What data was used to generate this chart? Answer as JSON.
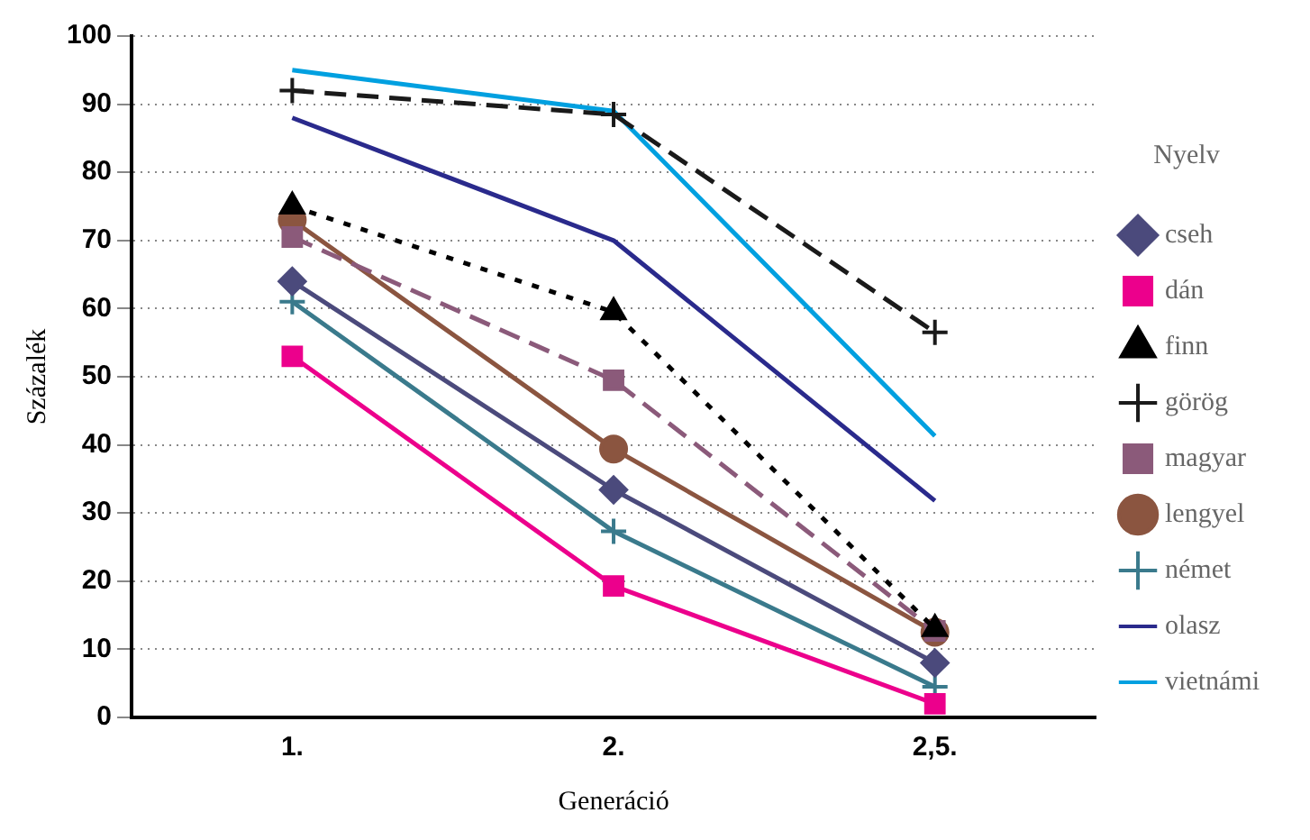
{
  "chart_data": {
    "type": "line",
    "xlabel": "Generáció",
    "ylabel": "Százalék",
    "legend_title": "Nyelv",
    "categories": [
      "1.",
      "2.",
      "2,5."
    ],
    "ylim": [
      0,
      100
    ],
    "yticks": [
      0,
      10,
      20,
      30,
      40,
      50,
      60,
      70,
      80,
      90,
      100
    ],
    "grid": "y",
    "legend": "right",
    "series": [
      {
        "name": "cseh",
        "color": "#4b4a7c",
        "marker": "diamond",
        "line_style": "solid",
        "values": [
          64,
          33.4,
          8
        ]
      },
      {
        "name": "dán",
        "color": "#ec008c",
        "marker": "square",
        "line_style": "solid",
        "values": [
          53,
          19.3,
          2
        ]
      },
      {
        "name": "finn",
        "color": "#000000",
        "marker": "triangle",
        "line_style": "dotted",
        "values": [
          75,
          59.5,
          13
        ]
      },
      {
        "name": "görög",
        "color": "#1a1a1a",
        "marker": "cross",
        "line_style": "dashed",
        "values": [
          92,
          88.5,
          56.5
        ]
      },
      {
        "name": "magyar",
        "color": "#8b5a7a",
        "marker": "square",
        "line_style": "dashed",
        "values": [
          70.5,
          49.5,
          12.7
        ]
      },
      {
        "name": "lengyel",
        "color": "#8b5540",
        "marker": "circle",
        "line_style": "solid",
        "values": [
          73,
          39.4,
          12.5
        ]
      },
      {
        "name": "német",
        "color": "#3a7a8c",
        "marker": "cross",
        "line_style": "solid",
        "values": [
          61,
          27.3,
          4.5
        ]
      },
      {
        "name": "olasz",
        "color": "#2a2a8c",
        "marker": "none",
        "line_style": "solid",
        "values": [
          88,
          70,
          31.8
        ]
      },
      {
        "name": "vietnámi",
        "color": "#00a0e0",
        "marker": "none",
        "line_style": "solid",
        "values": [
          95,
          89,
          41.3
        ]
      }
    ]
  }
}
